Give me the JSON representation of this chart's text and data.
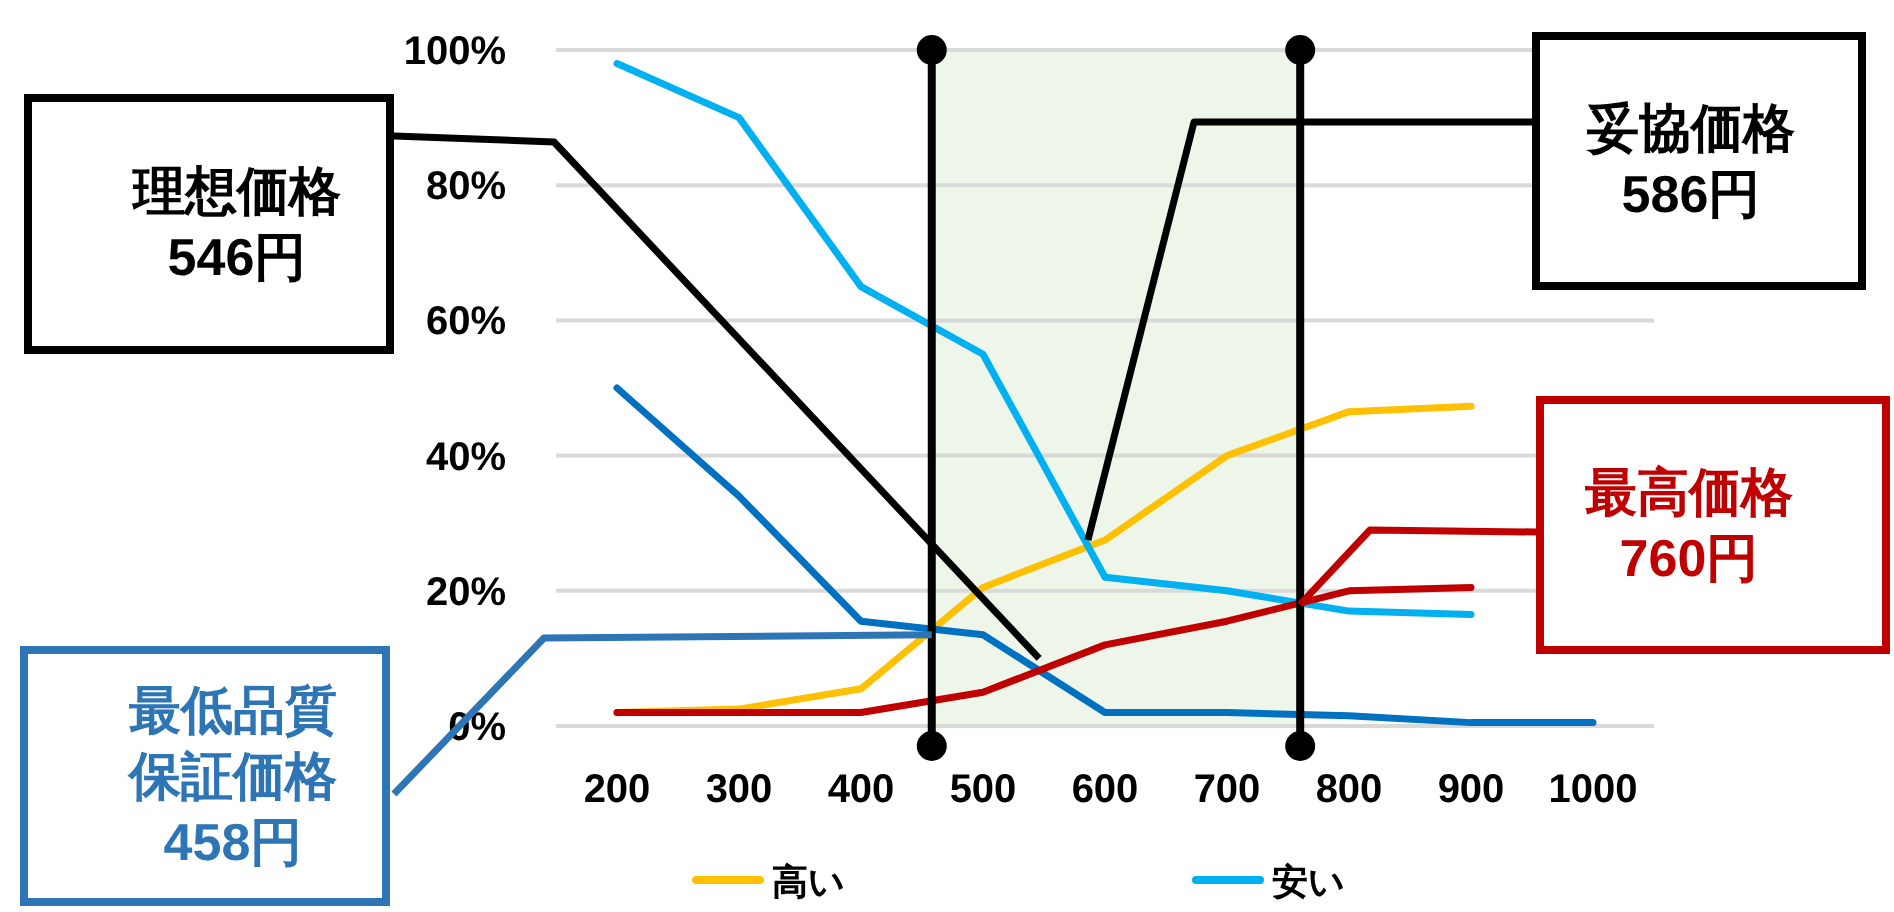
{
  "chart_data": {
    "type": "line",
    "x": [
      200,
      300,
      400,
      500,
      600,
      700,
      800,
      900,
      1000
    ],
    "xlim": [
      150,
      1050
    ],
    "xticks": [
      200,
      300,
      400,
      500,
      600,
      700,
      800,
      900,
      1000
    ],
    "ylim": [
      0,
      100
    ],
    "yticks": [
      {
        "value": 0,
        "label": "0%"
      },
      {
        "value": 20,
        "label": "20%"
      },
      {
        "value": 40,
        "label": "40%"
      },
      {
        "value": 60,
        "label": "60%"
      },
      {
        "value": 80,
        "label": "80%"
      },
      {
        "value": 100,
        "label": "100%"
      }
    ],
    "series": [
      {
        "name": "高い",
        "color": "#ffc000",
        "values": [
          2,
          2.5,
          5.5,
          20.5,
          27.5,
          40,
          46.5,
          47.3,
          null
        ]
      },
      {
        "name": "安い",
        "color": "#00b0f0",
        "values": [
          98,
          90,
          65,
          55,
          22,
          20,
          17,
          16.5,
          null
        ]
      },
      {
        "color": "#0070c0",
        "values": [
          50,
          34,
          15.5,
          13.5,
          2,
          2,
          1.5,
          0.5,
          0.5
        ]
      },
      {
        "color": "#c00000",
        "values": [
          2,
          2,
          2,
          5,
          12,
          15.5,
          20,
          20.5,
          null
        ]
      }
    ],
    "ref_lines": [
      {
        "axis": "x",
        "value": 458,
        "color": "#000000"
      },
      {
        "axis": "x",
        "value": 760,
        "color": "#000000"
      }
    ],
    "bands": [
      {
        "axis": "x",
        "from": 458,
        "to": 760,
        "color": "#eef5e9"
      }
    ],
    "annotations": [
      {
        "text": "理想価格 546円",
        "x": 546,
        "y": 10
      },
      {
        "text": "妥協価格 586円",
        "x": 586,
        "y": 27.5
      },
      {
        "text": "最高価格 760円",
        "x": 760,
        "y": 18
      },
      {
        "text": "最低品質保証価格 458円",
        "x": 458,
        "y": 13.5
      }
    ],
    "grid": "y",
    "legend": "bottom"
  }
}
